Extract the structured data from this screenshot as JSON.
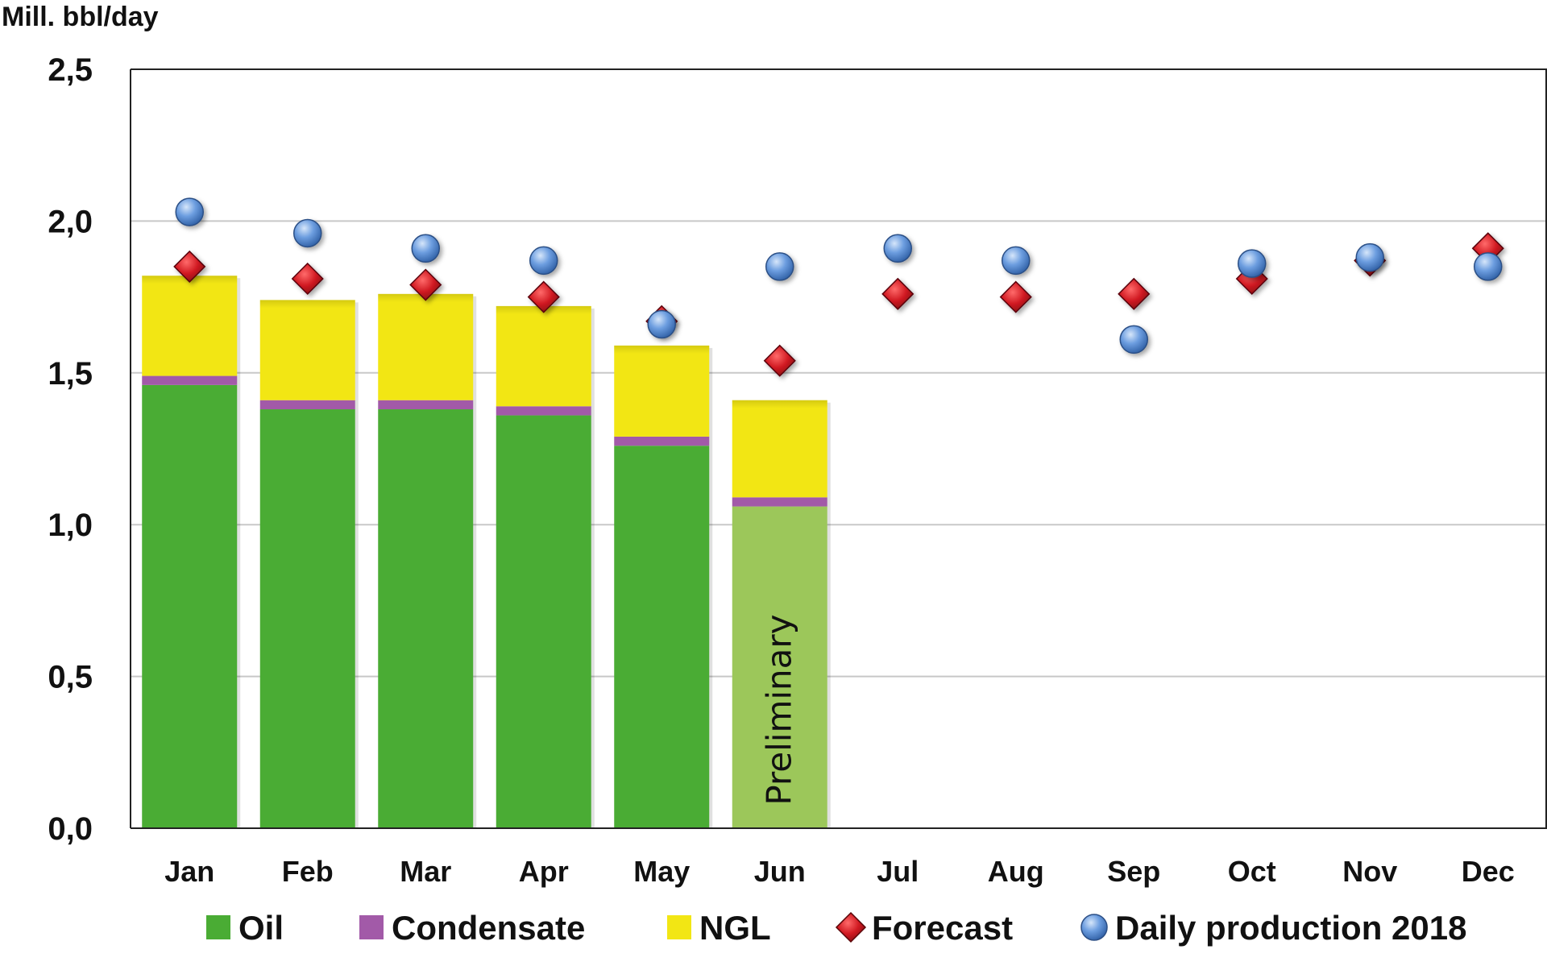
{
  "chart_data": {
    "type": "bar",
    "ylabel": "Mill. bbl/day",
    "ylim": [
      0,
      2.5
    ],
    "yticks": [
      "0,0",
      "0,5",
      "1,0",
      "1,5",
      "2,0",
      "2,5"
    ],
    "ytick_values": [
      0,
      0.5,
      1.0,
      1.5,
      2.0,
      2.5
    ],
    "grid": true,
    "legend_position": "bottom",
    "categories": [
      "Jan",
      "Feb",
      "Mar",
      "Apr",
      "May",
      "Jun",
      "Jul",
      "Aug",
      "Sep",
      "Oct",
      "Nov",
      "Dec"
    ],
    "series": [
      {
        "name": "Oil",
        "kind": "stacked-bar",
        "color": "#4aac34",
        "values": [
          1.46,
          1.38,
          1.38,
          1.36,
          1.26,
          1.06,
          null,
          null,
          null,
          null,
          null,
          null
        ]
      },
      {
        "name": "Condensate",
        "kind": "stacked-bar",
        "color": "#a25aa8",
        "values": [
          0.03,
          0.03,
          0.03,
          0.03,
          0.03,
          0.03,
          null,
          null,
          null,
          null,
          null,
          null
        ]
      },
      {
        "name": "NGL",
        "kind": "stacked-bar",
        "color": "#f2e614",
        "values": [
          0.33,
          0.33,
          0.35,
          0.33,
          0.3,
          0.32,
          null,
          null,
          null,
          null,
          null,
          null
        ]
      },
      {
        "name": "Forecast",
        "kind": "marker-diamond",
        "color": "#cc1a22",
        "values": [
          1.85,
          1.81,
          1.79,
          1.75,
          1.67,
          1.54,
          1.76,
          1.75,
          1.76,
          1.81,
          1.87,
          1.91
        ]
      },
      {
        "name": "Daily production 2018",
        "kind": "marker-circle",
        "color": "#4f86cc",
        "values": [
          2.03,
          1.96,
          1.91,
          1.87,
          1.66,
          1.85,
          1.91,
          1.87,
          1.61,
          1.86,
          1.88,
          1.85
        ]
      }
    ],
    "preliminary": {
      "category": "Jun",
      "text": "Preliminary",
      "oil_color": "#9cc75a"
    }
  }
}
